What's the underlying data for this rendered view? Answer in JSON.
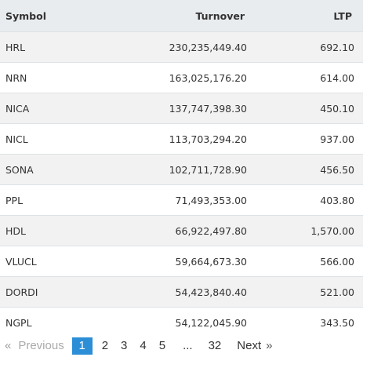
{
  "table": {
    "headers": {
      "symbol": "Symbol",
      "turnover": "Turnover",
      "ltp": "LTP"
    },
    "rows": [
      {
        "symbol": "HRL",
        "turnover": "230,235,449.40",
        "ltp": "692.10"
      },
      {
        "symbol": "NRN",
        "turnover": "163,025,176.20",
        "ltp": "614.00"
      },
      {
        "symbol": "NICA",
        "turnover": "137,747,398.30",
        "ltp": "450.10"
      },
      {
        "symbol": "NICL",
        "turnover": "113,703,294.20",
        "ltp": "937.00"
      },
      {
        "symbol": "SONA",
        "turnover": "102,711,728.90",
        "ltp": "456.50"
      },
      {
        "symbol": "PPL",
        "turnover": "71,493,353.00",
        "ltp": "403.80"
      },
      {
        "symbol": "HDL",
        "turnover": "66,922,497.80",
        "ltp": "1,570.00"
      },
      {
        "symbol": "VLUCL",
        "turnover": "59,664,673.30",
        "ltp": "566.00"
      },
      {
        "symbol": "DORDI",
        "turnover": "54,423,840.40",
        "ltp": "521.00"
      },
      {
        "symbol": "NGPL",
        "turnover": "54,122,045.90",
        "ltp": "343.50"
      }
    ]
  },
  "pagination": {
    "first_arrow": "«",
    "previous_label": "Previous",
    "pages": [
      "1",
      "2",
      "3",
      "4",
      "5"
    ],
    "active_page": "1",
    "ellipsis": "...",
    "last_page": "32",
    "next_label": "Next",
    "last_arrow": "»",
    "active_color": "#2b8ed6"
  }
}
